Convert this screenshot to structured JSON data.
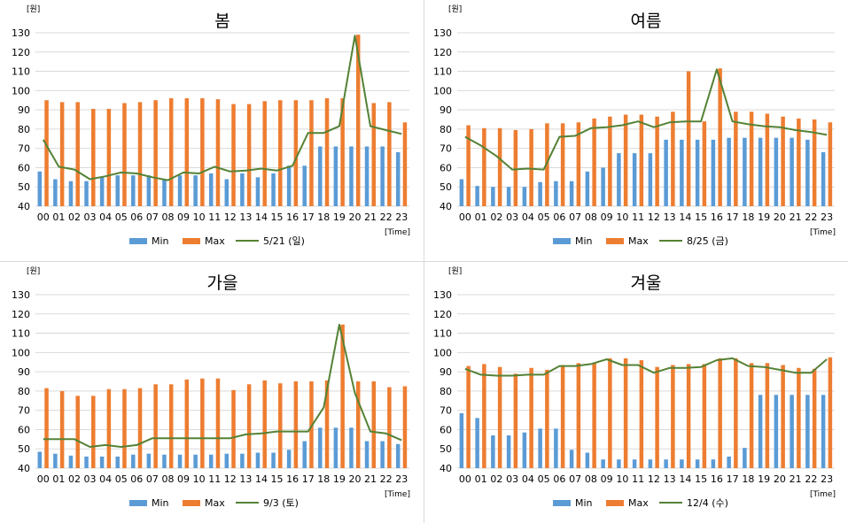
{
  "colors": {
    "min": "#5b9bd5",
    "max": "#ed7d31",
    "line": "#548235",
    "grid": "#d9d9d9",
    "text": "#000000"
  },
  "chart_data": [
    {
      "type": "bar",
      "title": "봄",
      "unit_label": "[원]",
      "x_unit_label": "[Time]",
      "categories": [
        "00",
        "01",
        "02",
        "03",
        "04",
        "05",
        "06",
        "07",
        "08",
        "09",
        "10",
        "11",
        "12",
        "13",
        "14",
        "15",
        "16",
        "17",
        "18",
        "19",
        "20",
        "21",
        "22",
        "23"
      ],
      "ylim": [
        40,
        130
      ],
      "yticks": [
        40,
        50,
        60,
        70,
        80,
        90,
        100,
        110,
        120,
        130
      ],
      "grid": true,
      "legend_position": "bottom",
      "series": [
        {
          "name": "Min",
          "kind": "bar",
          "values": [
            58,
            54,
            53,
            53,
            55,
            56,
            56,
            56,
            54,
            56,
            56,
            57,
            54,
            57,
            55,
            57,
            61,
            61,
            71,
            71,
            71,
            71,
            71,
            68
          ]
        },
        {
          "name": "Max",
          "kind": "bar",
          "values": [
            95,
            94,
            94,
            90.5,
            90.5,
            93.5,
            94,
            95,
            96,
            96,
            96,
            95.5,
            93,
            93,
            94.5,
            95,
            95,
            95,
            96,
            96,
            129,
            93.5,
            94,
            83.5
          ]
        },
        {
          "name": "5/21 (일)",
          "kind": "line",
          "values": [
            74.5,
            60.5,
            59,
            54,
            55.5,
            57.5,
            57,
            55,
            53.5,
            57.5,
            57,
            60.5,
            58,
            58.5,
            59.5,
            58.5,
            61,
            78,
            78,
            81.5,
            128.5,
            81.5,
            79.5,
            77.5
          ]
        }
      ]
    },
    {
      "type": "bar",
      "title": "여름",
      "unit_label": "[원]",
      "x_unit_label": "[Time]",
      "categories": [
        "00",
        "01",
        "02",
        "03",
        "04",
        "05",
        "06",
        "07",
        "08",
        "09",
        "10",
        "11",
        "12",
        "13",
        "14",
        "15",
        "16",
        "17",
        "18",
        "19",
        "20",
        "21",
        "22",
        "23"
      ],
      "ylim": [
        40,
        130
      ],
      "yticks": [
        40,
        50,
        60,
        70,
        80,
        90,
        100,
        110,
        120,
        130
      ],
      "grid": true,
      "legend_position": "bottom",
      "series": [
        {
          "name": "Min",
          "kind": "bar",
          "values": [
            54,
            50.5,
            50,
            50,
            50,
            52.5,
            53,
            53,
            58,
            60,
            67.5,
            67.5,
            67.5,
            74.5,
            74.5,
            74.5,
            74.5,
            75.5,
            75.5,
            75.5,
            75.5,
            75.5,
            74.5,
            68
          ]
        },
        {
          "name": "Max",
          "kind": "bar",
          "values": [
            82,
            80.5,
            80.5,
            79.5,
            80,
            83,
            83,
            83.5,
            85.5,
            86.5,
            87.5,
            87.5,
            86.5,
            89,
            110,
            84,
            111.5,
            89,
            89,
            88,
            86.5,
            85.5,
            85,
            83.5
          ]
        },
        {
          "name": "8/25 (금)",
          "kind": "line",
          "values": [
            76,
            71.5,
            66,
            59,
            59.5,
            59,
            76,
            76.5,
            80.5,
            81,
            82,
            84,
            81,
            83.5,
            84,
            84,
            111,
            84,
            82.5,
            81.5,
            81,
            79.5,
            78.5,
            77
          ]
        }
      ]
    },
    {
      "type": "bar",
      "title": "가을",
      "unit_label": "[원]",
      "x_unit_label": "[Time]",
      "categories": [
        "00",
        "01",
        "02",
        "03",
        "04",
        "05",
        "06",
        "07",
        "08",
        "09",
        "10",
        "11",
        "12",
        "13",
        "14",
        "15",
        "16",
        "17",
        "18",
        "19",
        "20",
        "21",
        "22",
        "23"
      ],
      "ylim": [
        40,
        130
      ],
      "yticks": [
        40,
        50,
        60,
        70,
        80,
        90,
        100,
        110,
        120,
        130
      ],
      "grid": true,
      "legend_position": "bottom",
      "series": [
        {
          "name": "Min",
          "kind": "bar",
          "values": [
            48.5,
            47.5,
            46.5,
            46,
            46,
            46,
            47,
            47.5,
            47,
            47,
            47,
            47,
            47.5,
            47.5,
            48,
            48,
            49.5,
            54,
            61,
            61,
            61,
            54,
            54,
            52.5
          ]
        },
        {
          "name": "Max",
          "kind": "bar",
          "values": [
            81.5,
            80,
            77.5,
            77.5,
            81,
            81,
            81.5,
            83.5,
            83.5,
            86,
            86.5,
            86.5,
            80.5,
            83.5,
            85.5,
            84,
            85,
            85,
            85.5,
            114.5,
            85,
            85,
            82,
            82.5
          ]
        },
        {
          "name": "9/3 (토)",
          "kind": "line",
          "values": [
            55,
            55,
            55,
            51,
            52,
            51,
            52,
            55.5,
            55.5,
            55.5,
            55.5,
            55.5,
            55.5,
            57.5,
            58,
            59,
            59,
            59,
            71.5,
            114.5,
            79,
            59,
            58,
            54.5
          ]
        }
      ]
    },
    {
      "type": "bar",
      "title": "겨울",
      "unit_label": "[원]",
      "x_unit_label": "[Time]",
      "categories": [
        "00",
        "01",
        "02",
        "03",
        "04",
        "05",
        "06",
        "07",
        "08",
        "09",
        "10",
        "11",
        "12",
        "13",
        "14",
        "15",
        "16",
        "17",
        "18",
        "19",
        "20",
        "21",
        "22",
        "23"
      ],
      "ylim": [
        40,
        130
      ],
      "yticks": [
        40,
        50,
        60,
        70,
        80,
        90,
        100,
        110,
        120,
        130
      ],
      "grid": true,
      "legend_position": "bottom",
      "series": [
        {
          "name": "Min",
          "kind": "bar",
          "values": [
            68.5,
            66,
            57,
            57,
            58.5,
            60.5,
            60.5,
            49.5,
            48,
            44.5,
            44.5,
            44.5,
            44.5,
            44.5,
            44.5,
            44.5,
            44.5,
            46,
            50.5,
            78,
            78,
            78,
            78,
            78
          ]
        },
        {
          "name": "Max",
          "kind": "bar",
          "values": [
            93,
            94,
            92.5,
            89,
            92,
            91,
            93.5,
            94.5,
            94.5,
            97,
            97,
            96,
            92.5,
            93.5,
            94,
            94,
            97,
            97,
            94.5,
            94.5,
            93.5,
            92,
            91.5,
            97.5
          ]
        },
        {
          "name": "12/4 (수)",
          "kind": "line",
          "values": [
            91.5,
            88.5,
            88,
            88,
            88.5,
            88.5,
            93,
            93,
            94,
            96.5,
            93.5,
            93.5,
            89.5,
            92,
            92,
            92.5,
            96,
            97,
            93,
            92.5,
            91,
            89.5,
            89.5,
            96.5
          ]
        }
      ]
    }
  ]
}
